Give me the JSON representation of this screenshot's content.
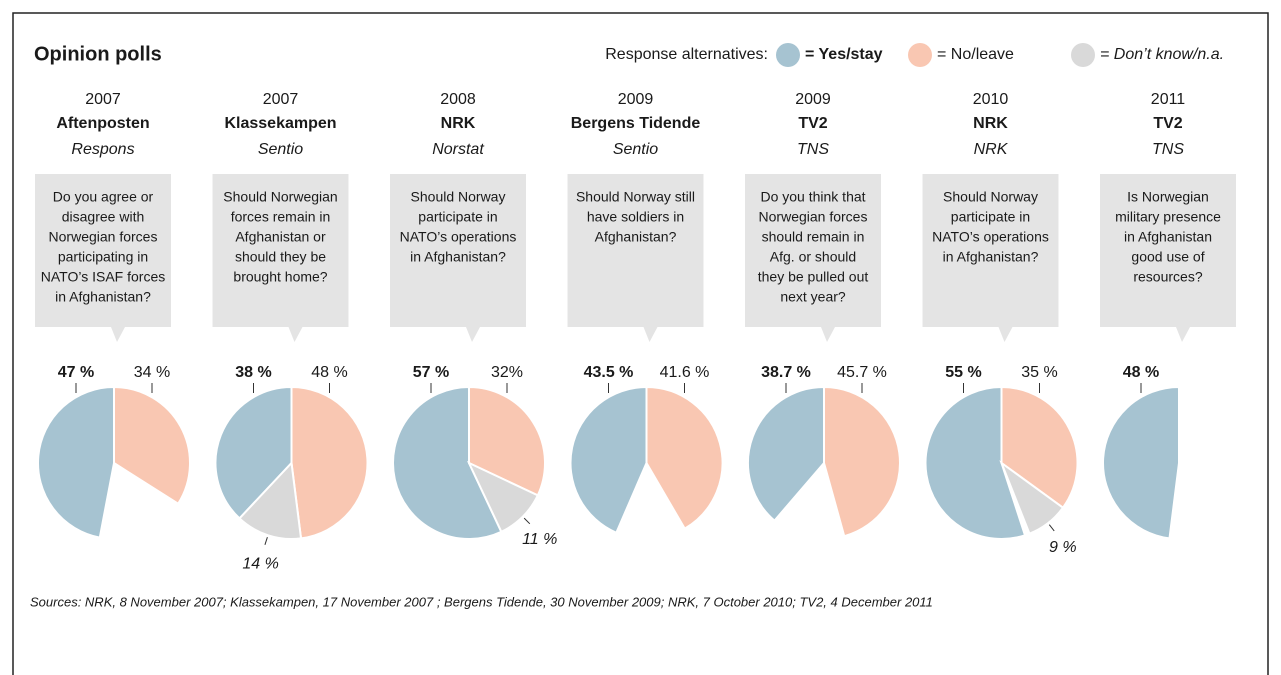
{
  "title": "Opinion polls",
  "legend": {
    "label": "Response alternatives:",
    "items": [
      {
        "name": "= Yes/stay",
        "color": "#a6c3d1"
      },
      {
        "name": "= No/leave",
        "color": "#f9c7b2"
      },
      {
        "name": "= Don’t know/n.a.",
        "color": "#d9d9d9"
      }
    ]
  },
  "source": "Sources: NRK, 8 November 2007; Klassekampen, 17 November 2007 ; Bergens Tidende, 30 November 2009; NRK, 7 October 2010; TV2, 4 December 2011",
  "chart_data": [
    {
      "type": "pie",
      "year": "2007",
      "title": "Aftenposten",
      "subtitle": "Respons",
      "question": [
        "Do you agree or",
        "disagree with",
        "Norwegian forces",
        "participating in",
        "NATO’s ISAF forces",
        "in Afghanistan?"
      ],
      "values": [
        47,
        34
      ],
      "value_labels": [
        "47 %",
        "34 %"
      ]
    },
    {
      "type": "pie",
      "year": "2007",
      "title": "Klassekampen",
      "subtitle": "Sentio",
      "question": [
        "Should Norwegian",
        "forces remain in",
        "Afghanistan or",
        "should they be",
        "brought home?"
      ],
      "values": [
        38,
        48,
        14
      ],
      "value_labels": [
        "38 %",
        "48 %",
        "14 %"
      ]
    },
    {
      "type": "pie",
      "year": "2008",
      "title": "NRK",
      "subtitle": "Norstat",
      "question": [
        "Should Norway",
        "participate in",
        "NATO’s operations",
        "in Afghanistan?"
      ],
      "values": [
        57,
        32,
        11
      ],
      "value_labels": [
        "57 %",
        "32%",
        "11 %"
      ]
    },
    {
      "type": "pie",
      "year": "2009",
      "title": "Bergens Tidende",
      "subtitle": "Sentio",
      "question": [
        "Should Norway still",
        "have soldiers in",
        "Afghanistan?"
      ],
      "values": [
        43.5,
        41.6
      ],
      "value_labels": [
        "43.5 %",
        "41.6 %"
      ]
    },
    {
      "type": "pie",
      "year": "2009",
      "title": "TV2",
      "subtitle": "TNS",
      "question": [
        "Do you think that",
        "Norwegian forces",
        "should remain in",
        "Afg. or should",
        "they be pulled out",
        "next year?"
      ],
      "values": [
        38.7,
        45.7
      ],
      "value_labels": [
        "38.7 %",
        "45.7 %"
      ]
    },
    {
      "type": "pie",
      "year": "2010",
      "title": "NRK",
      "subtitle": "NRK",
      "question": [
        "Should Norway",
        "participate in",
        "NATO’s operations",
        "in Afghanistan?"
      ],
      "values": [
        55,
        35,
        9
      ],
      "value_labels": [
        "55 %",
        "35 %",
        "9 %"
      ]
    },
    {
      "type": "pie",
      "year": "2011",
      "title": "TV2",
      "subtitle": "TNS",
      "question": [
        "Is Norwegian",
        "military presence",
        "in Afghanistan",
        "good use of",
        "resources?"
      ],
      "values": [
        48
      ],
      "value_labels": [
        "48 %"
      ]
    }
  ]
}
